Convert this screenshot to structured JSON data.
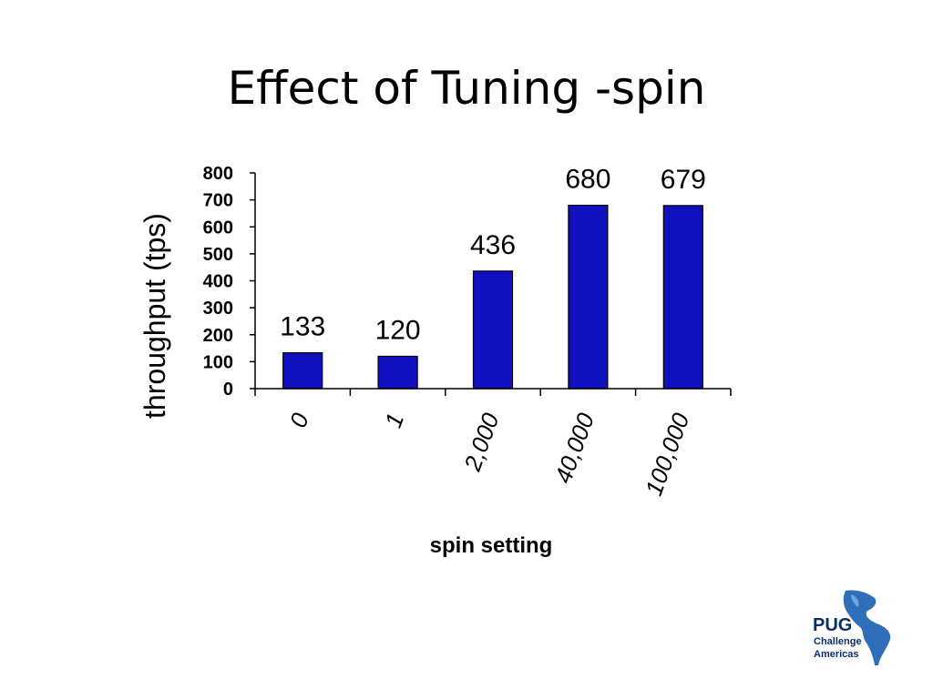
{
  "slide": {
    "title": "Effect of Tuning -spin"
  },
  "chart_data": {
    "type": "bar",
    "categories": [
      "0",
      "1",
      "2,000",
      "40,000",
      "100,000"
    ],
    "values": [
      133,
      120,
      436,
      680,
      679
    ],
    "data_labels": [
      "133",
      "120",
      "436",
      "680",
      "679"
    ],
    "title": "",
    "xlabel": "spin setting",
    "ylabel": "throughput (tps)",
    "ylim": [
      0,
      800
    ],
    "yticks": [
      "0",
      "100",
      "200",
      "300",
      "400",
      "500",
      "600",
      "700",
      "800"
    ],
    "grid": false,
    "legend": "none",
    "bar_color": "#1010c0"
  },
  "logo": {
    "line1": "PUG",
    "line2": "Challenge",
    "line3": "Americas"
  }
}
